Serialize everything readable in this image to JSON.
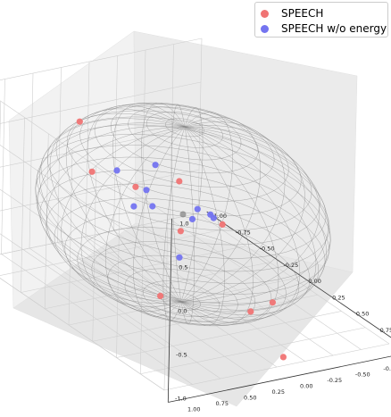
{
  "chart_data": {
    "type": "scatter",
    "projection": "3d",
    "title": "",
    "xlabel": "",
    "ylabel": "",
    "zlabel": "",
    "xlim": [
      -1.0,
      1.0
    ],
    "ylim": [
      -1.0,
      1.0
    ],
    "zlim": [
      -1.0,
      1.0
    ],
    "x_ticks": [
      "-1.00",
      "-0.75",
      "-0.50",
      "-0.25",
      "0.00",
      "0.25",
      "0.50",
      "0.75",
      "1.00"
    ],
    "y_ticks": [
      "-1.00",
      "-0.75",
      "-0.50",
      "-0.25",
      "0.00",
      "0.25",
      "0.50",
      "0.75",
      "1.00"
    ],
    "z_ticks": [
      "-1.0",
      "-0.5",
      "0.0",
      "0.5",
      "1.0"
    ],
    "grid": true,
    "legend_position": "top-right",
    "sphere": {
      "style": "wireframe",
      "radius": 1.0,
      "color": "#808080"
    },
    "center_marker": {
      "x": 0.0,
      "y": 0.0,
      "z": 0.0,
      "color": "#7f7f7f"
    },
    "series": [
      {
        "name": "SPEECH",
        "color": "#f07474",
        "points": [
          {
            "x": -0.45,
            "y": 0.55,
            "z": 0.87
          },
          {
            "x": 0.15,
            "y": 0.95,
            "z": 0.85
          },
          {
            "x": 0.5,
            "y": 0.45,
            "z": 0.3
          },
          {
            "x": 0.65,
            "y": 0.75,
            "z": -0.25
          },
          {
            "x": 0.95,
            "y": 0.2,
            "z": -0.35
          },
          {
            "x": -0.45,
            "y": -0.35,
            "z": -0.05
          },
          {
            "x": -0.9,
            "y": -0.35,
            "z": -0.45
          },
          {
            "x": -0.4,
            "y": -0.7,
            "z": -0.6
          },
          {
            "x": 0.95,
            "y": -0.1,
            "z": -0.95
          },
          {
            "x": 0.25,
            "y": -0.6,
            "z": -0.98
          }
        ]
      },
      {
        "name": "SPEECH w/o energy",
        "color": "#7474f0",
        "points": [
          {
            "x": 0.35,
            "y": 0.9,
            "z": 1.0
          },
          {
            "x": 0.6,
            "y": 0.85,
            "z": 0.95
          },
          {
            "x": 0.55,
            "y": 0.75,
            "z": 0.7
          },
          {
            "x": 0.85,
            "y": 0.65,
            "z": 0.75
          },
          {
            "x": 0.3,
            "y": 0.7,
            "z": 0.5
          },
          {
            "x": 0.55,
            "y": 0.5,
            "z": 0.05
          },
          {
            "x": -0.7,
            "y": -0.35,
            "z": -0.05
          },
          {
            "x": -0.55,
            "y": -0.75,
            "z": -0.65
          },
          {
            "x": -0.7,
            "y": -0.85,
            "z": -0.75
          },
          {
            "x": -0.95,
            "y": -0.95,
            "z": -0.9
          }
        ]
      }
    ]
  }
}
